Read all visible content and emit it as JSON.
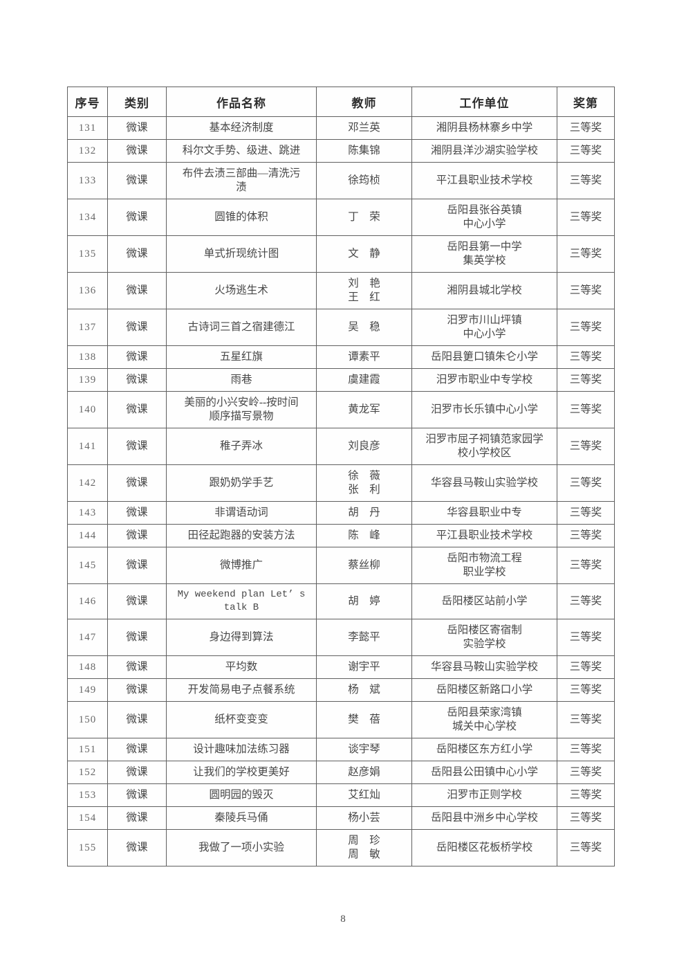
{
  "table": {
    "headers": [
      "序号",
      "类别",
      "作品名称",
      "教师",
      "工作单位",
      "奖第"
    ],
    "rows": [
      {
        "no": "131",
        "category": "微课",
        "title": "基本经济制度",
        "teacher": "邓兰英",
        "unit": "湘阴县杨林寨乡中学",
        "award": "三等奖"
      },
      {
        "no": "132",
        "category": "微课",
        "title": "科尔文手势、级进、跳进",
        "teacher": "陈集锦",
        "unit": "湘阴县洋沙湖实验学校",
        "award": "三等奖"
      },
      {
        "no": "133",
        "category": "微课",
        "title": "布件去渍三部曲—清洗污\n渍",
        "teacher": "徐筠桢",
        "unit": "平江县职业技术学校",
        "award": "三等奖"
      },
      {
        "no": "134",
        "category": "微课",
        "title": "圆锥的体积",
        "teacher": "丁　荣",
        "unit": "岳阳县张谷英镇\n中心小学",
        "award": "三等奖"
      },
      {
        "no": "135",
        "category": "微课",
        "title": "单式折现统计图",
        "teacher": "文　静",
        "unit": "岳阳县第一中学\n集英学校",
        "award": "三等奖"
      },
      {
        "no": "136",
        "category": "微课",
        "title": "火场逃生术",
        "teacher": "刘　艳\n王　红",
        "unit": "湘阴县城北学校",
        "award": "三等奖"
      },
      {
        "no": "137",
        "category": "微课",
        "title": "古诗词三首之宿建德江",
        "teacher": "吴　稳",
        "unit": "汨罗市川山坪镇\n中心小学",
        "award": "三等奖"
      },
      {
        "no": "138",
        "category": "微课",
        "title": "五星红旗",
        "teacher": "谭素平",
        "unit": "岳阳县筻口镇朱仑小学",
        "award": "三等奖"
      },
      {
        "no": "139",
        "category": "微课",
        "title": "雨巷",
        "teacher": "虞建霞",
        "unit": "汨罗市职业中专学校",
        "award": "三等奖"
      },
      {
        "no": "140",
        "category": "微课",
        "title": "美丽的小兴安岭--按时间\n顺序描写景物",
        "teacher": "黄龙军",
        "unit": "汨罗市长乐镇中心小学",
        "award": "三等奖"
      },
      {
        "no": "141",
        "category": "微课",
        "title": "稚子弄冰",
        "teacher": "刘良彦",
        "unit": "汨罗市屈子祠镇范家园学\n校小学校区",
        "award": "三等奖"
      },
      {
        "no": "142",
        "category": "微课",
        "title": "跟奶奶学手艺",
        "teacher": "徐　薇\n张　利",
        "unit": "华容县马鞍山实验学校",
        "award": "三等奖"
      },
      {
        "no": "143",
        "category": "微课",
        "title": "非谓语动词",
        "teacher": "胡　丹",
        "unit": "华容县职业中专",
        "award": "三等奖"
      },
      {
        "no": "144",
        "category": "微课",
        "title": "田径起跑器的安装方法",
        "teacher": "陈　峰",
        "unit": "平江县职业技术学校",
        "award": "三等奖"
      },
      {
        "no": "145",
        "category": "微课",
        "title": "微博推广",
        "teacher": "蔡丝柳",
        "unit": "岳阳市物流工程\n职业学校",
        "award": "三等奖"
      },
      {
        "no": "146",
        "category": "微课",
        "title": "My weekend plan Let’ s\ntalk B",
        "teacher": "胡　婷",
        "unit": "岳阳楼区站前小学",
        "award": "三等奖"
      },
      {
        "no": "147",
        "category": "微课",
        "title": "身边得到算法",
        "teacher": "李懿平",
        "unit": "岳阳楼区寄宿制\n实验学校",
        "award": "三等奖"
      },
      {
        "no": "148",
        "category": "微课",
        "title": "平均数",
        "teacher": "谢宇平",
        "unit": "华容县马鞍山实验学校",
        "award": "三等奖"
      },
      {
        "no": "149",
        "category": "微课",
        "title": "开发简易电子点餐系统",
        "teacher": "杨　斌",
        "unit": "岳阳楼区新路口小学",
        "award": "三等奖"
      },
      {
        "no": "150",
        "category": "微课",
        "title": "纸杯变变变",
        "teacher": "樊　蓓",
        "unit": "岳阳县荣家湾镇\n城关中心学校",
        "award": "三等奖"
      },
      {
        "no": "151",
        "category": "微课",
        "title": "设计趣味加法练习器",
        "teacher": "谈宇琴",
        "unit": "岳阳楼区东方红小学",
        "award": "三等奖"
      },
      {
        "no": "152",
        "category": "微课",
        "title": "让我们的学校更美好",
        "teacher": "赵彦娟",
        "unit": "岳阳县公田镇中心小学",
        "award": "三等奖"
      },
      {
        "no": "153",
        "category": "微课",
        "title": "圆明园的毁灭",
        "teacher": "艾红灿",
        "unit": "汨罗市正则学校",
        "award": "三等奖"
      },
      {
        "no": "154",
        "category": "微课",
        "title": "秦陵兵马俑",
        "teacher": "杨小芸",
        "unit": "岳阳县中洲乡中心学校",
        "award": "三等奖"
      },
      {
        "no": "155",
        "category": "微课",
        "title": "我做了一项小实验",
        "teacher": "周　珍\n周　敏",
        "unit": "岳阳楼区花板桥学校",
        "award": "三等奖"
      }
    ]
  },
  "footer": {
    "page_number": "8"
  }
}
